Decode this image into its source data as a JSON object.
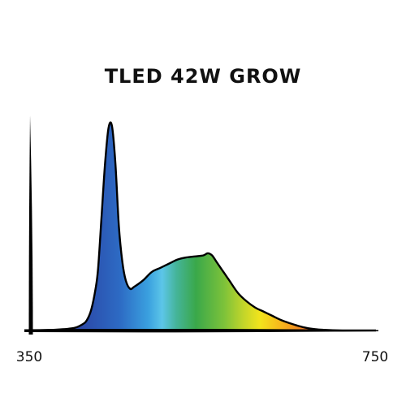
{
  "chart_data": {
    "type": "area",
    "title": "TLED 42W GROW",
    "xlabel": "",
    "ylabel": "",
    "xlim": [
      350,
      750
    ],
    "ylim": [
      0,
      1
    ],
    "grid": false,
    "x_tick_labels": [
      "350",
      "750"
    ],
    "series": [
      {
        "x": [
          350,
          380,
          400,
          410,
          415,
          420,
          425,
          428,
          432,
          436,
          440,
          444,
          448,
          452,
          456,
          460,
          465,
          470,
          480,
          490,
          500,
          510,
          520,
          530,
          540,
          550,
          555,
          560,
          565,
          570,
          575,
          580,
          590,
          600,
          610,
          620,
          630,
          640,
          650,
          660,
          670,
          680,
          690,
          700,
          710,
          720,
          730,
          750
        ],
        "y": [
          0.0,
          0.004,
          0.012,
          0.03,
          0.05,
          0.1,
          0.2,
          0.3,
          0.55,
          0.8,
          0.97,
          0.98,
          0.8,
          0.5,
          0.33,
          0.24,
          0.2,
          0.21,
          0.24,
          0.28,
          0.3,
          0.32,
          0.34,
          0.35,
          0.355,
          0.36,
          0.37,
          0.36,
          0.33,
          0.3,
          0.27,
          0.24,
          0.18,
          0.14,
          0.11,
          0.09,
          0.07,
          0.05,
          0.035,
          0.022,
          0.012,
          0.006,
          0.003,
          0.001,
          0.0,
          0.0,
          0.0,
          0.0
        ],
        "gradient_stops": [
          {
            "offset": 0.0,
            "color": "#2b3fa0"
          },
          {
            "offset": 0.18,
            "color": "#2d6bc4"
          },
          {
            "offset": 0.28,
            "color": "#3aa0df"
          },
          {
            "offset": 0.33,
            "color": "#5cc6e8"
          },
          {
            "offset": 0.38,
            "color": "#45b49a"
          },
          {
            "offset": 0.45,
            "color": "#3aa84a"
          },
          {
            "offset": 0.55,
            "color": "#7cc23a"
          },
          {
            "offset": 0.62,
            "color": "#c2d52a"
          },
          {
            "offset": 0.68,
            "color": "#f3e41c"
          },
          {
            "offset": 0.76,
            "color": "#f6b21c"
          },
          {
            "offset": 0.84,
            "color": "#ef7a22"
          },
          {
            "offset": 0.92,
            "color": "#e23b22"
          },
          {
            "offset": 1.0,
            "color": "#b81a1a"
          }
        ],
        "fill_color_start_x": 395,
        "fill_color_end_x": 720
      }
    ],
    "colors": {
      "axis": "#000000",
      "outline": "#000000",
      "background": "#ffffff"
    }
  }
}
